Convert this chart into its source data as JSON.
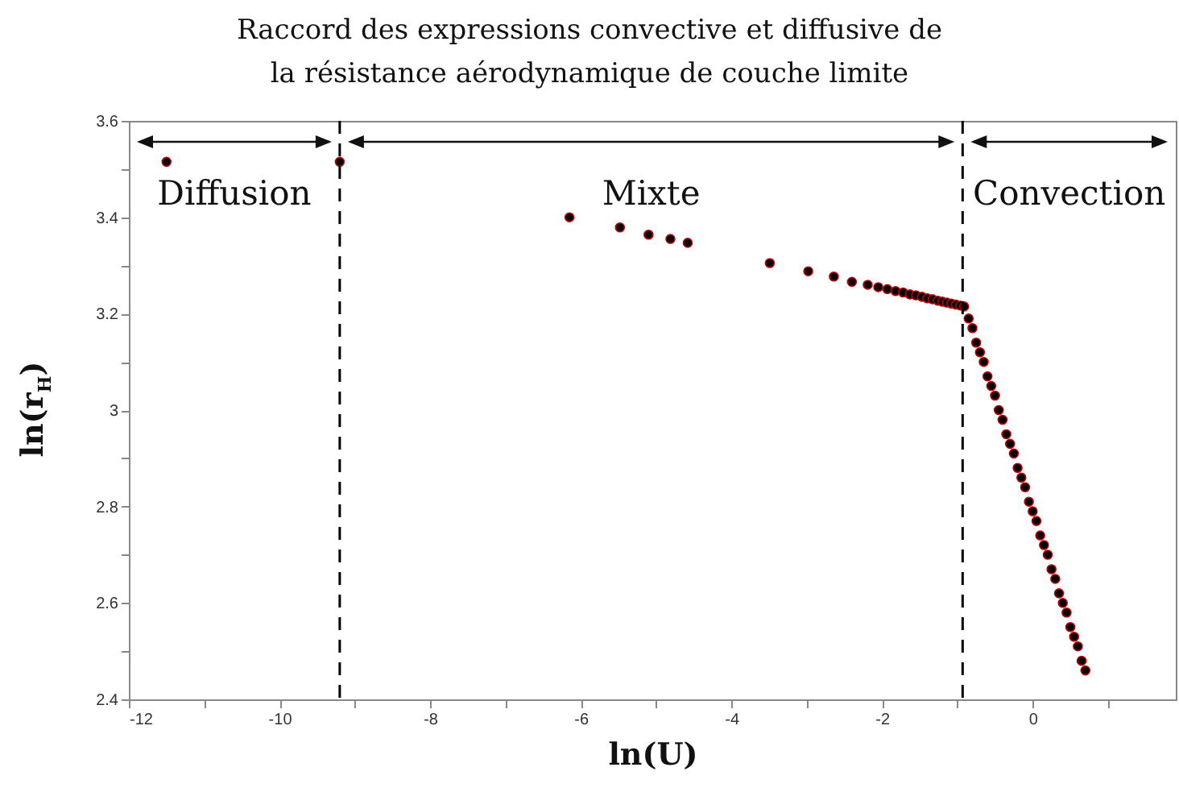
{
  "chart_data": {
    "type": "scatter",
    "title": "Raccord des expressions convective et diffusive de\nla résistance aérodynamique de couche limite",
    "xlabel": "ln(U)",
    "ylabel": "ln(r$_{H}$)",
    "xlim": [
      -12,
      1.9
    ],
    "ylim": [
      2.4,
      3.6
    ],
    "xticks": [
      -12,
      {
        "value": -11,
        "label": null
      },
      -10,
      {
        "value": -9,
        "label": null
      },
      -8,
      {
        "value": -7,
        "label": null
      },
      -6,
      {
        "value": -5,
        "label": null
      },
      -4,
      {
        "value": -3,
        "label": null
      },
      -2,
      {
        "value": -1,
        "label": null
      },
      0,
      {
        "value": 1,
        "label": null
      }
    ],
    "yticks": [
      2.4,
      {
        "value": 2.5,
        "label": null
      },
      2.6,
      {
        "value": 2.7,
        "label": null
      },
      2.8,
      {
        "value": 2.9,
        "label": null
      },
      3.0,
      {
        "value": 3.1,
        "label": null
      },
      3.2,
      {
        "value": 3.3,
        "label": null
      },
      3.4,
      {
        "value": 3.5,
        "label": null
      },
      3.6
    ],
    "grid": false,
    "marker": "circle",
    "series": [
      {
        "color": "#000000",
        "x": [
          -11.5,
          -9.2,
          -6.15,
          -5.48,
          -5.1,
          -4.81,
          -4.58,
          -3.49,
          -2.98,
          -2.64,
          -2.4,
          -2.19,
          -2.05,
          -1.93,
          -1.82,
          -1.72,
          -1.63,
          -1.55,
          -1.47,
          -1.4,
          -1.33,
          -1.26,
          -1.2,
          -1.14,
          -1.08,
          -1.02,
          -0.96,
          -0.91,
          -0.85,
          -0.8,
          -0.75,
          -0.7,
          -0.65,
          -0.6,
          -0.55,
          -0.5,
          -0.45,
          -0.4,
          -0.35,
          -0.3,
          -0.25,
          -0.2,
          -0.15,
          -0.1,
          -0.05,
          0,
          0.05,
          0.1,
          0.15,
          0.2,
          0.25,
          0.3,
          0.35,
          0.4,
          0.45,
          0.5,
          0.55,
          0.6,
          0.65,
          0.7
        ],
        "values": [
          3.515,
          3.515,
          3.4,
          3.379,
          3.364,
          3.355,
          3.347,
          3.305,
          3.288,
          3.277,
          3.266,
          3.26,
          3.255,
          3.251,
          3.247,
          3.244,
          3.24,
          3.238,
          3.235,
          3.232,
          3.23,
          3.227,
          3.225,
          3.223,
          3.221,
          3.219,
          3.217,
          3.215,
          3.19,
          3.17,
          3.14,
          3.12,
          3.1,
          3.07,
          3.05,
          3.03,
          3.0,
          2.98,
          2.95,
          2.93,
          2.91,
          2.88,
          2.86,
          2.84,
          2.81,
          2.79,
          2.77,
          2.74,
          2.72,
          2.7,
          2.67,
          2.65,
          2.62,
          2.6,
          2.58,
          2.55,
          2.53,
          2.51,
          2.48,
          2.46
        ]
      }
    ],
    "ref_lines": [
      {
        "axis": "x",
        "value": -9.2,
        "color": "#000000",
        "line_style": "dashed"
      },
      {
        "axis": "x",
        "value": -0.93,
        "color": "#000000",
        "line_style": "dashed"
      }
    ],
    "annotations": [
      "Diffusion",
      "Mixte",
      "Convection"
    ]
  }
}
